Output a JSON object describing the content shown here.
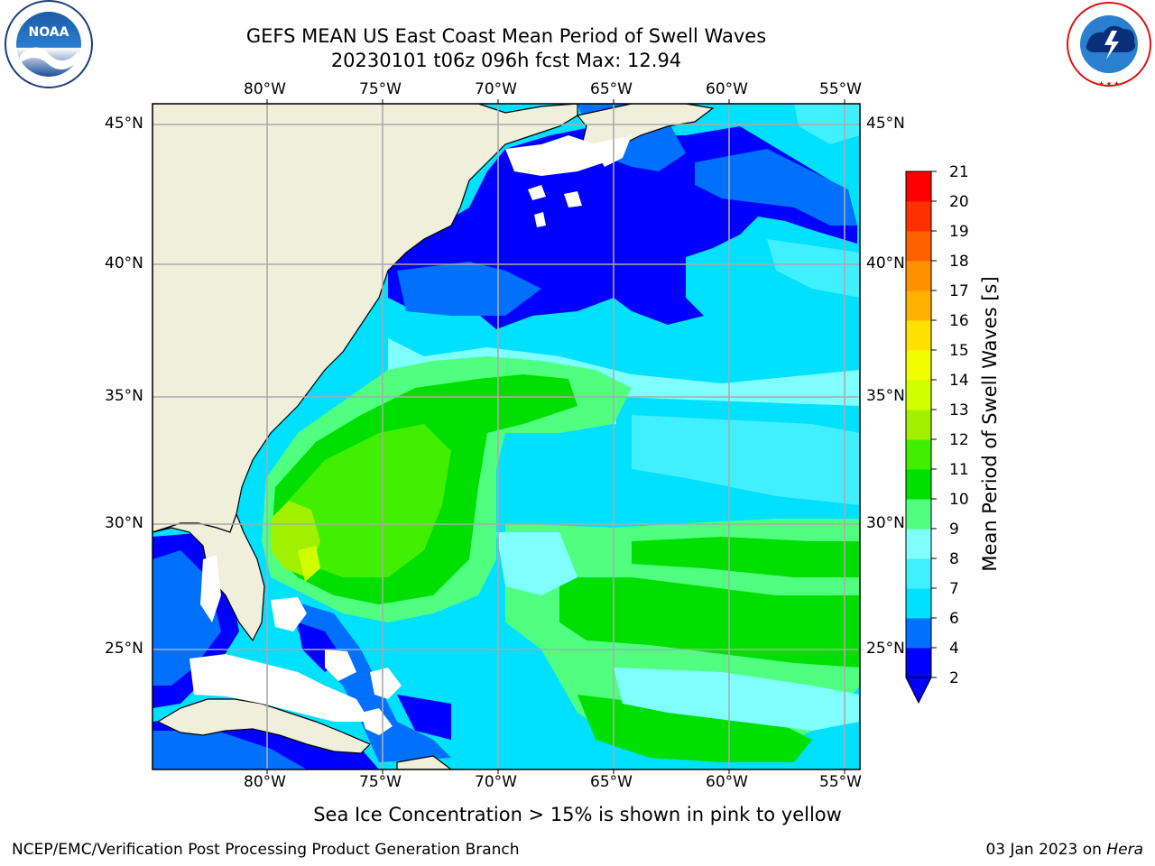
{
  "header": {
    "title_line1": "GEFS MEAN US East Coast Mean Period of Swell Waves",
    "title_line2": "20230101 t06z 096h fcst   Max: 12.94"
  },
  "logos": {
    "left": {
      "text": "NOAA",
      "ring_text": "NATIONAL OCEANIC AND ATMOSPHERIC ADMINISTRATION · U.S. DEPARTMENT OF COMMERCE"
    },
    "right": {
      "ring_text": "NATIONAL WEATHER SERVICE"
    }
  },
  "axes": {
    "lon_ticks": [
      "80°W",
      "75°W",
      "70°W",
      "65°W",
      "60°W",
      "55°W"
    ],
    "lat_ticks": [
      "45°N",
      "40°N",
      "35°N",
      "30°N",
      "25°N"
    ]
  },
  "colorbar": {
    "label": "Mean Period of Swell Waves [s]",
    "ticks": [
      "2",
      "4",
      "6",
      "7",
      "8",
      "9",
      "10",
      "11",
      "12",
      "13",
      "14",
      "15",
      "16",
      "17",
      "18",
      "19",
      "20",
      "21"
    ],
    "colors": [
      "#0000ff",
      "#0070ff",
      "#00e0ff",
      "#40f0ff",
      "#80ffff",
      "#50ff80",
      "#00e000",
      "#40f000",
      "#a0f000",
      "#d0ff00",
      "#f0ff00",
      "#ffe000",
      "#ffb000",
      "#ff9000",
      "#ff6000",
      "#ff3000",
      "#ff0000"
    ]
  },
  "footer": {
    "note": "Sea Ice Concentration > 15% is shown in pink to yellow",
    "left": "NCEP/EMC/Verification Post Processing Product Generation Branch",
    "right_date": "03 Jan 2023 on ",
    "right_host": "Hera"
  },
  "chart_data": {
    "type": "heatmap",
    "title": "GEFS MEAN US East Coast Mean Period of Swell Waves",
    "subtitle": "20230101 t06z 096h fcst   Max: 12.94",
    "variable": "Mean Period of Swell Waves [s]",
    "max": 12.94,
    "xlim": [
      -85,
      -54
    ],
    "ylim": [
      20.5,
      46
    ],
    "x_ticks": [
      -80,
      -75,
      -70,
      -65,
      -60,
      -55
    ],
    "y_ticks": [
      45,
      40,
      35,
      30,
      25
    ],
    "colorbar_levels": [
      2,
      4,
      6,
      7,
      8,
      9,
      10,
      11,
      12,
      13,
      14,
      15,
      16,
      17,
      18,
      19,
      20,
      21
    ],
    "grid": true
  }
}
